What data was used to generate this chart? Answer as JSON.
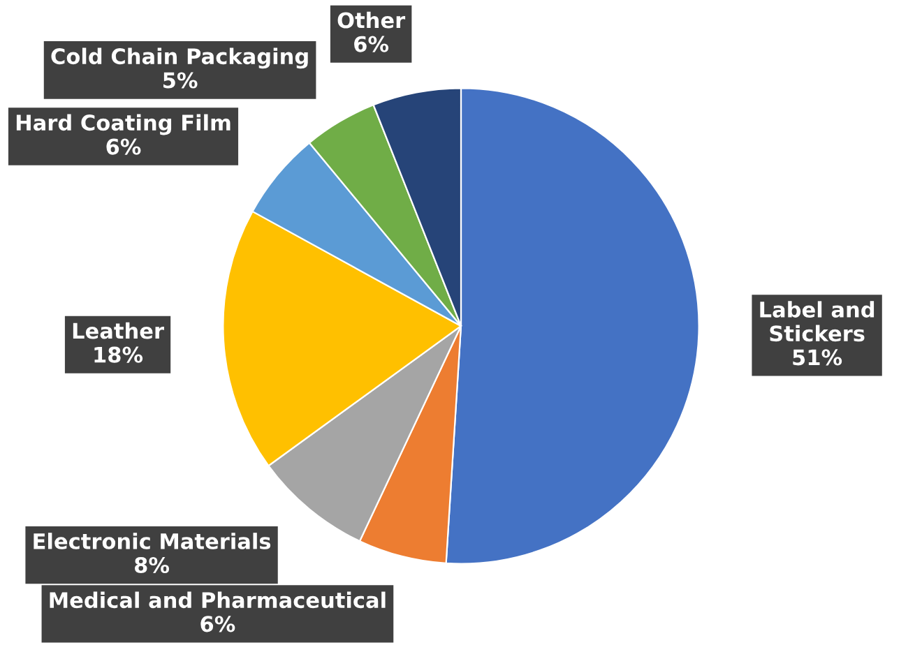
{
  "chart_data": {
    "type": "pie",
    "categories": [
      "Label and Stickers",
      "Medical and Pharmaceutical",
      "Electronic Materials",
      "Leather",
      "Hard Coating Film",
      "Cold Chain Packaging",
      "Other"
    ],
    "values": [
      51,
      6,
      8,
      18,
      6,
      5,
      6
    ],
    "value_labels": [
      "51%",
      "6%",
      "8%",
      "18%",
      "6%",
      "5%",
      "6%"
    ],
    "colors": [
      "#4472c4",
      "#ed7d31",
      "#a5a5a5",
      "#ffc000",
      "#5b9bd5",
      "#70ad47",
      "#264478"
    ],
    "legend": false
  }
}
